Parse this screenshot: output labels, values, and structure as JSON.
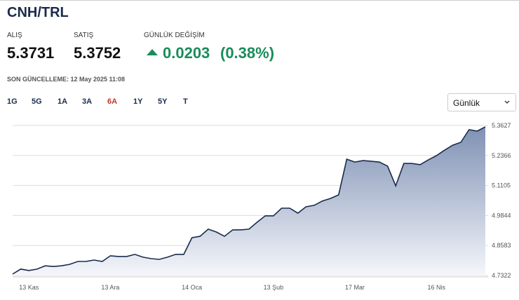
{
  "header": {
    "title": "CNH/TRL",
    "bid_label": "ALIŞ",
    "bid": "5.3731",
    "ask_label": "SATIŞ",
    "ask": "5.3752",
    "change_label": "GÜNLÜK DEĞİŞİM",
    "change": "0.0203",
    "change_pct": "(0.38%)",
    "updated": "SON GÜNCELLEME: 12 May 2025 11:08"
  },
  "ranges": [
    "1G",
    "5G",
    "1A",
    "3A",
    "6A",
    "1Y",
    "5Y",
    "T"
  ],
  "active_range": "6A",
  "interval": "Günlük",
  "chart_data": {
    "type": "area",
    "color": "#1a2b4c",
    "categories": [
      null,
      null,
      "13 Kas",
      null,
      null,
      null,
      null,
      null,
      null,
      null,
      null,
      null,
      "13 Ara",
      null,
      null,
      null,
      null,
      null,
      null,
      null,
      null,
      null,
      "14 Oca",
      null,
      null,
      null,
      null,
      null,
      null,
      null,
      null,
      null,
      "13 Şub",
      null,
      null,
      null,
      null,
      null,
      null,
      null,
      null,
      null,
      "17 Mar",
      null,
      null,
      null,
      null,
      null,
      null,
      null,
      null,
      null,
      "16 Nis",
      null,
      null,
      null,
      null,
      null,
      null
    ],
    "values": [
      4.738,
      4.759,
      4.753,
      4.759,
      4.773,
      4.77,
      4.773,
      4.779,
      4.791,
      4.791,
      4.797,
      4.791,
      4.815,
      4.812,
      4.812,
      4.821,
      4.809,
      4.803,
      4.8,
      4.809,
      4.821,
      4.821,
      4.891,
      4.897,
      4.927,
      4.915,
      4.897,
      4.924,
      4.924,
      4.927,
      4.956,
      4.983,
      4.983,
      5.015,
      5.015,
      4.994,
      5.021,
      5.027,
      5.045,
      5.056,
      5.071,
      5.221,
      5.209,
      5.215,
      5.212,
      5.209,
      5.192,
      5.109,
      5.203,
      5.203,
      5.198,
      5.218,
      5.236,
      5.259,
      5.28,
      5.292,
      5.345,
      5.339,
      5.357
    ],
    "ylim": [
      4.7322,
      5.3627
    ],
    "yticks": [
      5.3627,
      5.2366,
      5.1105,
      4.9844,
      4.8583,
      4.7322
    ],
    "grid": true
  }
}
